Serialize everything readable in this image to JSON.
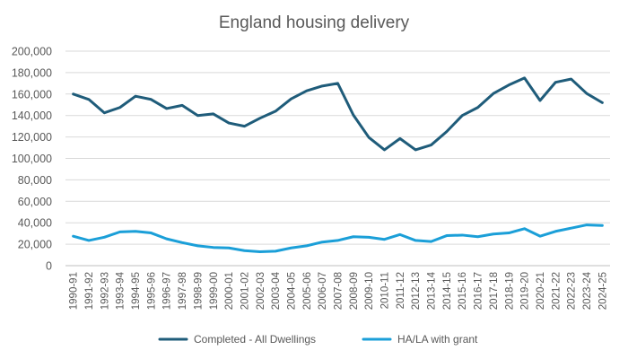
{
  "chart_data": {
    "type": "line",
    "title": "England housing delivery",
    "xlabel": "",
    "ylabel": "",
    "ylim": [
      0,
      200000
    ],
    "yticks": [
      "0",
      "20,000",
      "40,000",
      "60,000",
      "80,000",
      "100,000",
      "120,000",
      "140,000",
      "160,000",
      "180,000",
      "200,000"
    ],
    "ytick_values": [
      0,
      20000,
      40000,
      60000,
      80000,
      100000,
      120000,
      140000,
      160000,
      180000,
      200000
    ],
    "grid": "horizontal",
    "legend_position": "bottom",
    "categories": [
      "1990-91",
      "1991-92",
      "1992-93",
      "1993-94",
      "1994-95",
      "1995-96",
      "1996-97",
      "1997-98",
      "1998-99",
      "1999-00",
      "2000-01",
      "2001-02",
      "2002-03",
      "2003-04",
      "2004-05",
      "2005-06",
      "2006-07",
      "2007-08",
      "2008-09",
      "2009-10",
      "2010-11",
      "2011-12",
      "2012-13",
      "2013-14",
      "2014-15",
      "2015-16",
      "2016-17",
      "2017-18",
      "2018-19",
      "2019-20",
      "2020-21",
      "2021-22",
      "2022-23",
      "2023-24",
      "2024-25"
    ],
    "series": [
      {
        "name": "Completed - All Dwellings",
        "color": "#1f5c7a",
        "values": [
          160000,
          155000,
          142500,
          147500,
          158000,
          155000,
          146500,
          149500,
          140000,
          141500,
          133000,
          130000,
          137500,
          144000,
          155500,
          163000,
          167500,
          170000,
          140500,
          119500,
          108000,
          118500,
          108000,
          112500,
          125000,
          140000,
          147500,
          160500,
          168500,
          175000,
          154000,
          171000,
          174000,
          160500,
          152000
        ]
      },
      {
        "name": "HA/LA with grant",
        "color": "#1b9fd8",
        "values": [
          27500,
          23500,
          26500,
          31500,
          32000,
          30500,
          25000,
          21500,
          18500,
          17000,
          16500,
          14000,
          13000,
          13500,
          16500,
          18500,
          22000,
          23500,
          27000,
          26500,
          24500,
          29000,
          23500,
          22500,
          28000,
          28500,
          27000,
          29500,
          30500,
          34500,
          27500,
          32000,
          35000,
          38000,
          37500
        ]
      }
    ]
  },
  "legend_labels": [
    "Completed - All Dwellings",
    "HA/LA with grant"
  ]
}
